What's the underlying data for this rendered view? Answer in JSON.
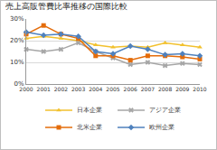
{
  "chart_data": {
    "type": "line",
    "title": "売上高販管費比率推移の国際比較",
    "x": [
      2000,
      2001,
      2002,
      2003,
      2004,
      2005,
      2006,
      2007,
      2008,
      2009,
      2010
    ],
    "xlim": [
      2000,
      2010
    ],
    "xticks": [
      2000,
      2001,
      2002,
      2003,
      2004,
      2005,
      2006,
      2007,
      2008,
      2009,
      2010
    ],
    "ylim": [
      0,
      30
    ],
    "yticks": [
      {
        "value": 0,
        "label": "0%"
      },
      {
        "value": 10,
        "label": "10%"
      },
      {
        "value": 20,
        "label": "20%"
      },
      {
        "value": 30,
        "label": "30%"
      }
    ],
    "grid": true,
    "legend": "bottom",
    "series": [
      {
        "name": "日本企業",
        "color": "#f2c12e",
        "marker": "triangle-up",
        "values": [
          21,
          22,
          21,
          20,
          18,
          17,
          17.5,
          17,
          19,
          18,
          17
        ]
      },
      {
        "name": "アジア企業",
        "color": "#a6a6a6",
        "marker": "x",
        "values": [
          16,
          15,
          16,
          19,
          15,
          12,
          9,
          10,
          8.5,
          9.5,
          9
        ]
      },
      {
        "name": "北米企業",
        "color": "#e46c0a",
        "marker": "square",
        "values": [
          23,
          27,
          23,
          21,
          13,
          13,
          11,
          13,
          13,
          12.5,
          11.5
        ]
      },
      {
        "name": "欧州企業",
        "color": "#4f81bd",
        "marker": "diamond",
        "values": [
          24,
          22.5,
          23,
          22,
          15,
          14,
          17.5,
          16,
          13.5,
          14,
          13
        ]
      }
    ]
  }
}
